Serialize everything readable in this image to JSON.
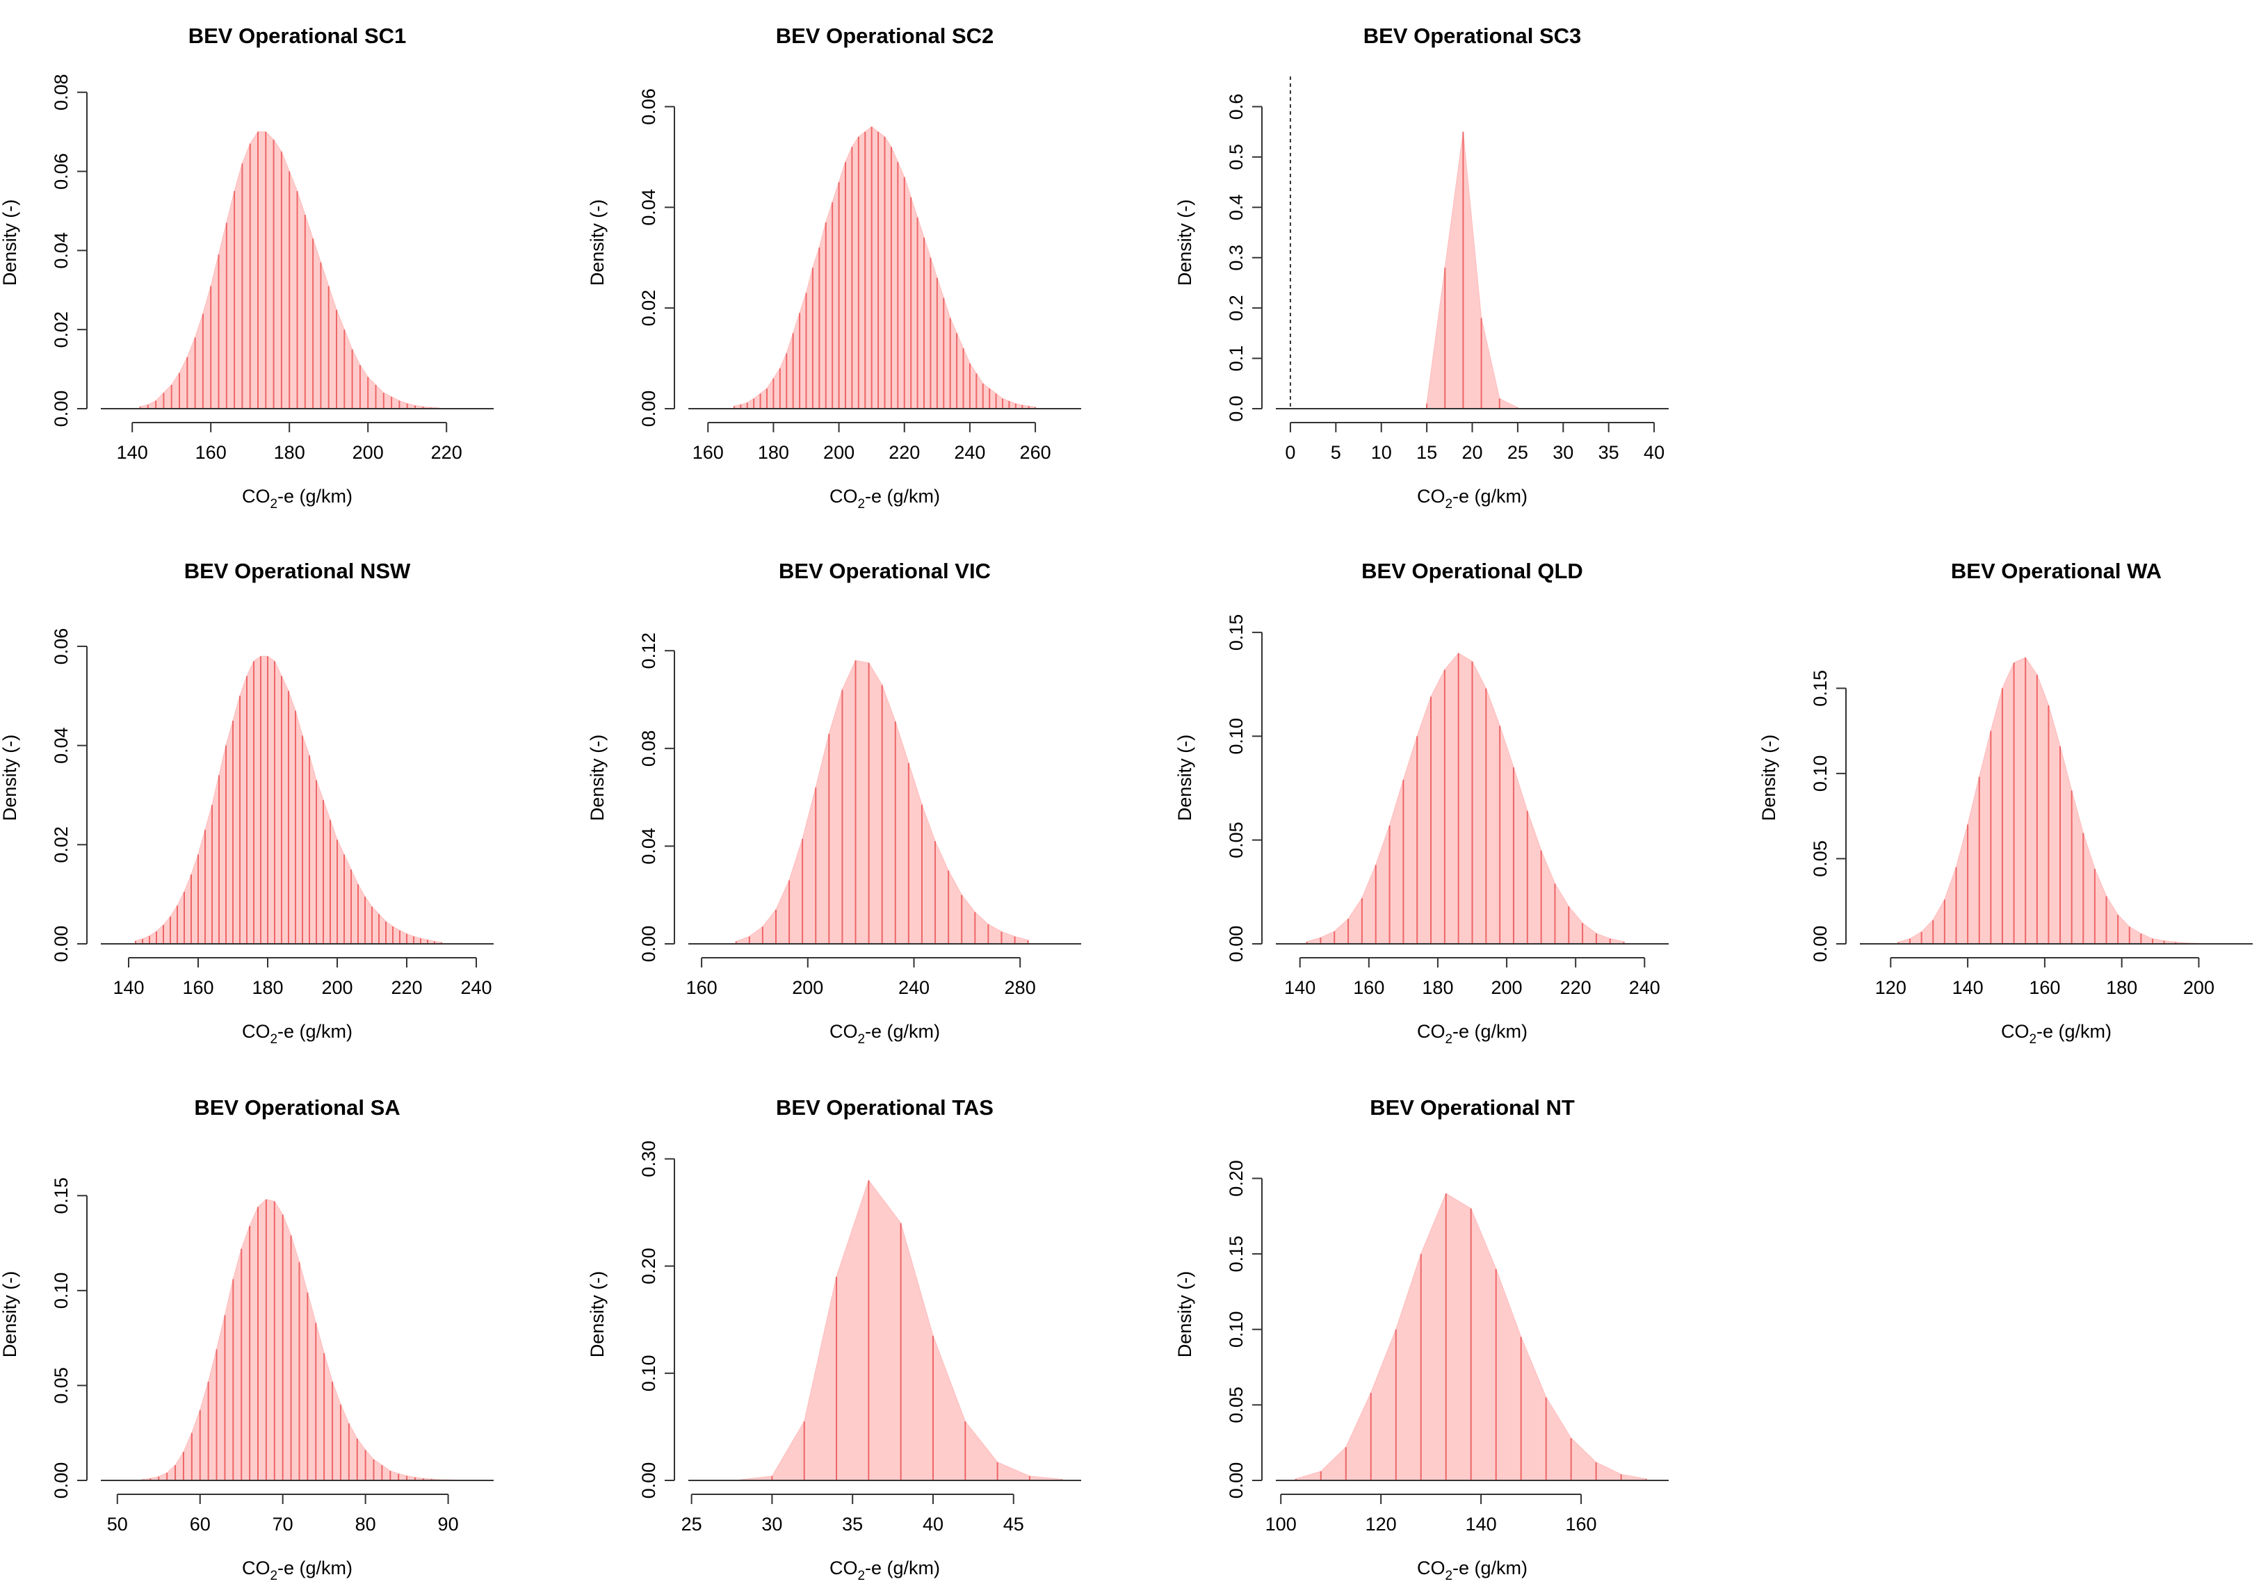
{
  "chart_data": [
    {
      "type": "bar",
      "title": "BEV Operational SC1",
      "xlabel": "CO2-e (g/km)",
      "xlabel_main": "CO",
      "xlabel_sub": "2",
      "xlabel_rest": "-e (g/km)",
      "ylabel": "Density (-)",
      "xlim": [
        132,
        232
      ],
      "ylim": [
        0,
        0.084
      ],
      "xticks": [
        "140",
        "160",
        "180",
        "200",
        "220"
      ],
      "yticks": [
        "0.00",
        "0.02",
        "0.04",
        "0.06",
        "0.08"
      ],
      "x": [
        142,
        144,
        146,
        148,
        150,
        152,
        154,
        156,
        158,
        160,
        162,
        164,
        166,
        168,
        170,
        172,
        174,
        176,
        178,
        180,
        182,
        184,
        186,
        188,
        190,
        192,
        194,
        196,
        198,
        200,
        202,
        204,
        206,
        208,
        210,
        212,
        214,
        216,
        218
      ],
      "values": [
        0.0005,
        0.001,
        0.002,
        0.004,
        0.006,
        0.009,
        0.013,
        0.018,
        0.024,
        0.031,
        0.039,
        0.047,
        0.055,
        0.062,
        0.067,
        0.07,
        0.07,
        0.068,
        0.065,
        0.06,
        0.055,
        0.049,
        0.043,
        0.037,
        0.031,
        0.025,
        0.02,
        0.015,
        0.011,
        0.008,
        0.006,
        0.004,
        0.003,
        0.002,
        0.0013,
        0.0008,
        0.0005,
        0.0003,
        0.0002
      ]
    },
    {
      "type": "bar",
      "title": "BEV Operational SC2",
      "xlabel": "CO2-e (g/km)",
      "xlabel_main": "CO",
      "xlabel_sub": "2",
      "xlabel_rest": "-e (g/km)",
      "ylabel": "Density (-)",
      "xlim": [
        154,
        274
      ],
      "ylim": [
        0,
        0.066
      ],
      "xticks": [
        "160",
        "180",
        "200",
        "220",
        "240",
        "260"
      ],
      "yticks": [
        "0.00",
        "0.02",
        "0.04",
        "0.06"
      ],
      "x": [
        168,
        170,
        172,
        174,
        176,
        178,
        180,
        182,
        184,
        186,
        188,
        190,
        192,
        194,
        196,
        198,
        200,
        202,
        204,
        206,
        208,
        210,
        212,
        214,
        216,
        218,
        220,
        222,
        224,
        226,
        228,
        230,
        232,
        234,
        236,
        238,
        240,
        242,
        244,
        246,
        248,
        250,
        252,
        254,
        256,
        258,
        260
      ],
      "values": [
        0.0005,
        0.0008,
        0.0012,
        0.002,
        0.003,
        0.004,
        0.006,
        0.008,
        0.011,
        0.015,
        0.019,
        0.023,
        0.028,
        0.032,
        0.037,
        0.041,
        0.045,
        0.049,
        0.052,
        0.054,
        0.055,
        0.056,
        0.055,
        0.054,
        0.052,
        0.049,
        0.046,
        0.042,
        0.038,
        0.034,
        0.03,
        0.026,
        0.022,
        0.018,
        0.015,
        0.012,
        0.009,
        0.007,
        0.005,
        0.004,
        0.003,
        0.002,
        0.0015,
        0.001,
        0.0007,
        0.0005,
        0.0003
      ]
    },
    {
      "type": "bar",
      "title": "BEV Operational SC3",
      "xlabel": "CO2-e (g/km)",
      "xlabel_main": "CO",
      "xlabel_sub": "2",
      "xlabel_rest": "-e (g/km)",
      "ylabel": "Density (-)",
      "xlim": [
        -1.6,
        41.6
      ],
      "ylim": [
        0,
        0.66
      ],
      "refline_x": 0,
      "xticks": [
        "0",
        "5",
        "10",
        "15",
        "20",
        "25",
        "30",
        "35",
        "40"
      ],
      "yticks": [
        "0.0",
        "0.1",
        "0.2",
        "0.3",
        "0.4",
        "0.5",
        "0.6"
      ],
      "x": [
        15,
        17,
        19,
        21,
        23,
        25
      ],
      "values": [
        0.01,
        0.28,
        0.55,
        0.18,
        0.02,
        0.002
      ]
    },
    {
      "type": "bar",
      "title": "BEV Operational NSW",
      "xlabel": "CO2-e (g/km)",
      "xlabel_main": "CO",
      "xlabel_sub": "2",
      "xlabel_rest": "-e (g/km)",
      "ylabel": "Density (-)",
      "xlim": [
        132,
        245
      ],
      "ylim": [
        0,
        0.067
      ],
      "xticks": [
        "140",
        "160",
        "180",
        "200",
        "220",
        "240"
      ],
      "yticks": [
        "0.00",
        "0.02",
        "0.04",
        "0.06"
      ],
      "x": [
        142,
        144,
        146,
        148,
        150,
        152,
        154,
        156,
        158,
        160,
        162,
        164,
        166,
        168,
        170,
        172,
        174,
        176,
        178,
        180,
        182,
        184,
        186,
        188,
        190,
        192,
        194,
        196,
        198,
        200,
        202,
        204,
        206,
        208,
        210,
        212,
        214,
        216,
        218,
        220,
        222,
        224,
        226,
        228,
        230
      ],
      "values": [
        0.0006,
        0.001,
        0.0016,
        0.0025,
        0.0038,
        0.0055,
        0.0077,
        0.0105,
        0.014,
        0.018,
        0.023,
        0.028,
        0.034,
        0.04,
        0.045,
        0.05,
        0.054,
        0.057,
        0.058,
        0.058,
        0.057,
        0.054,
        0.051,
        0.047,
        0.042,
        0.038,
        0.033,
        0.029,
        0.025,
        0.021,
        0.018,
        0.015,
        0.012,
        0.0095,
        0.0075,
        0.006,
        0.0045,
        0.0035,
        0.0027,
        0.002,
        0.0015,
        0.0011,
        0.0008,
        0.0005,
        0.0003
      ]
    },
    {
      "type": "bar",
      "title": "BEV Operational VIC",
      "xlabel": "CO2-e (g/km)",
      "xlabel_main": "CO",
      "xlabel_sub": "2",
      "xlabel_rest": "-e (g/km)",
      "ylabel": "Density (-)",
      "xlim": [
        155,
        303
      ],
      "ylim": [
        0,
        0.136
      ],
      "xticks": [
        "160",
        "200",
        "240",
        "280"
      ],
      "yticks": [
        "0.00",
        "0.04",
        "0.08",
        "0.12"
      ],
      "x": [
        173,
        178,
        183,
        188,
        193,
        198,
        203,
        208,
        213,
        218,
        223,
        228,
        233,
        238,
        243,
        248,
        253,
        258,
        263,
        268,
        273,
        278,
        283
      ],
      "values": [
        0.001,
        0.003,
        0.007,
        0.014,
        0.026,
        0.043,
        0.064,
        0.086,
        0.104,
        0.116,
        0.115,
        0.106,
        0.091,
        0.074,
        0.057,
        0.042,
        0.03,
        0.02,
        0.013,
        0.008,
        0.005,
        0.003,
        0.0015
      ]
    },
    {
      "type": "bar",
      "title": "BEV Operational QLD",
      "xlabel": "CO2-e (g/km)",
      "xlabel_main": "CO",
      "xlabel_sub": "2",
      "xlabel_rest": "-e (g/km)",
      "ylabel": "Density (-)",
      "xlim": [
        133,
        247
      ],
      "ylim": [
        0,
        0.16
      ],
      "xticks": [
        "140",
        "160",
        "180",
        "200",
        "220",
        "240"
      ],
      "yticks": [
        "0.00",
        "0.05",
        "0.10",
        "0.15"
      ],
      "x": [
        142,
        146,
        150,
        154,
        158,
        162,
        166,
        170,
        174,
        178,
        182,
        186,
        190,
        194,
        198,
        202,
        206,
        210,
        214,
        218,
        222,
        226,
        230,
        234
      ],
      "values": [
        0.001,
        0.003,
        0.006,
        0.012,
        0.022,
        0.038,
        0.057,
        0.079,
        0.1,
        0.119,
        0.132,
        0.14,
        0.136,
        0.123,
        0.105,
        0.085,
        0.064,
        0.045,
        0.029,
        0.018,
        0.01,
        0.005,
        0.0025,
        0.001
      ]
    },
    {
      "type": "bar",
      "title": "BEV Operational WA",
      "xlabel": "CO2-e (g/km)",
      "xlabel_main": "CO",
      "xlabel_sub": "2",
      "xlabel_rest": "-e (g/km)",
      "ylabel": "Density (-)",
      "xlim": [
        112,
        214
      ],
      "ylim": [
        0,
        0.195
      ],
      "xticks": [
        "120",
        "140",
        "160",
        "180",
        "200"
      ],
      "yticks": [
        "0.00",
        "0.05",
        "0.10",
        "0.15"
      ],
      "x": [
        122,
        125,
        128,
        131,
        134,
        137,
        140,
        143,
        146,
        149,
        152,
        155,
        158,
        161,
        164,
        167,
        170,
        173,
        176,
        179,
        182,
        185,
        188,
        191,
        194,
        197,
        200,
        203
      ],
      "values": [
        0.001,
        0.003,
        0.007,
        0.014,
        0.026,
        0.045,
        0.07,
        0.098,
        0.125,
        0.15,
        0.165,
        0.168,
        0.158,
        0.14,
        0.116,
        0.09,
        0.065,
        0.044,
        0.028,
        0.017,
        0.01,
        0.006,
        0.003,
        0.0018,
        0.001,
        0.0005,
        0.0003,
        0.0002
      ]
    },
    {
      "type": "bar",
      "title": "BEV Operational SA",
      "xlabel": "CO2-e (g/km)",
      "xlabel_main": "CO",
      "xlabel_sub": "2",
      "xlabel_rest": "-e (g/km)",
      "ylabel": "Density (-)",
      "xlim": [
        48,
        95.5
      ],
      "ylim": [
        0,
        0.175
      ],
      "xticks": [
        "50",
        "60",
        "70",
        "80",
        "90"
      ],
      "yticks": [
        "0.00",
        "0.05",
        "0.10",
        "0.15"
      ],
      "x": [
        53,
        54,
        55,
        56,
        57,
        58,
        59,
        60,
        61,
        62,
        63,
        64,
        65,
        66,
        67,
        68,
        69,
        70,
        71,
        72,
        73,
        74,
        75,
        76,
        77,
        78,
        79,
        80,
        81,
        82,
        83,
        84,
        85,
        86,
        87,
        88,
        89,
        90,
        91
      ],
      "values": [
        0.0005,
        0.001,
        0.002,
        0.004,
        0.008,
        0.015,
        0.025,
        0.037,
        0.052,
        0.069,
        0.087,
        0.106,
        0.122,
        0.134,
        0.144,
        0.148,
        0.147,
        0.14,
        0.129,
        0.115,
        0.099,
        0.083,
        0.067,
        0.052,
        0.04,
        0.03,
        0.022,
        0.016,
        0.011,
        0.008,
        0.005,
        0.0035,
        0.0024,
        0.0016,
        0.001,
        0.0007,
        0.0004,
        0.0003,
        0.0002
      ]
    },
    {
      "type": "bar",
      "title": "BEV Operational TAS",
      "xlabel": "CO2-e (g/km)",
      "xlabel_main": "CO",
      "xlabel_sub": "2",
      "xlabel_rest": "-e (g/km)",
      "ylabel": "Density (-)",
      "xlim": [
        24.8,
        49.2
      ],
      "ylim": [
        0,
        0.31
      ],
      "xticks": [
        "25",
        "30",
        "35",
        "40",
        "45"
      ],
      "yticks": [
        "0.00",
        "0.10",
        "0.20",
        "0.30"
      ],
      "x": [
        28,
        30,
        32,
        34,
        36,
        38,
        40,
        42,
        44,
        46,
        48
      ],
      "values": [
        0.0005,
        0.004,
        0.055,
        0.19,
        0.28,
        0.24,
        0.135,
        0.055,
        0.017,
        0.004,
        0.001
      ]
    },
    {
      "type": "bar",
      "title": "BEV Operational NT",
      "xlabel": "CO2-e (g/km)",
      "xlabel_main": "CO",
      "xlabel_sub": "2",
      "xlabel_rest": "-e (g/km)",
      "ylabel": "Density (-)",
      "xlim": [
        99,
        177.5
      ],
      "ylim": [
        0,
        0.22
      ],
      "xticks": [
        "100",
        "120",
        "140",
        "160"
      ],
      "yticks": [
        "0.00",
        "0.05",
        "0.10",
        "0.15",
        "0.20"
      ],
      "x": [
        103,
        108,
        113,
        118,
        123,
        128,
        133,
        138,
        143,
        148,
        153,
        158,
        163,
        168,
        173
      ],
      "values": [
        0.001,
        0.006,
        0.022,
        0.058,
        0.1,
        0.15,
        0.19,
        0.18,
        0.14,
        0.095,
        0.055,
        0.028,
        0.012,
        0.004,
        0.001
      ]
    }
  ]
}
